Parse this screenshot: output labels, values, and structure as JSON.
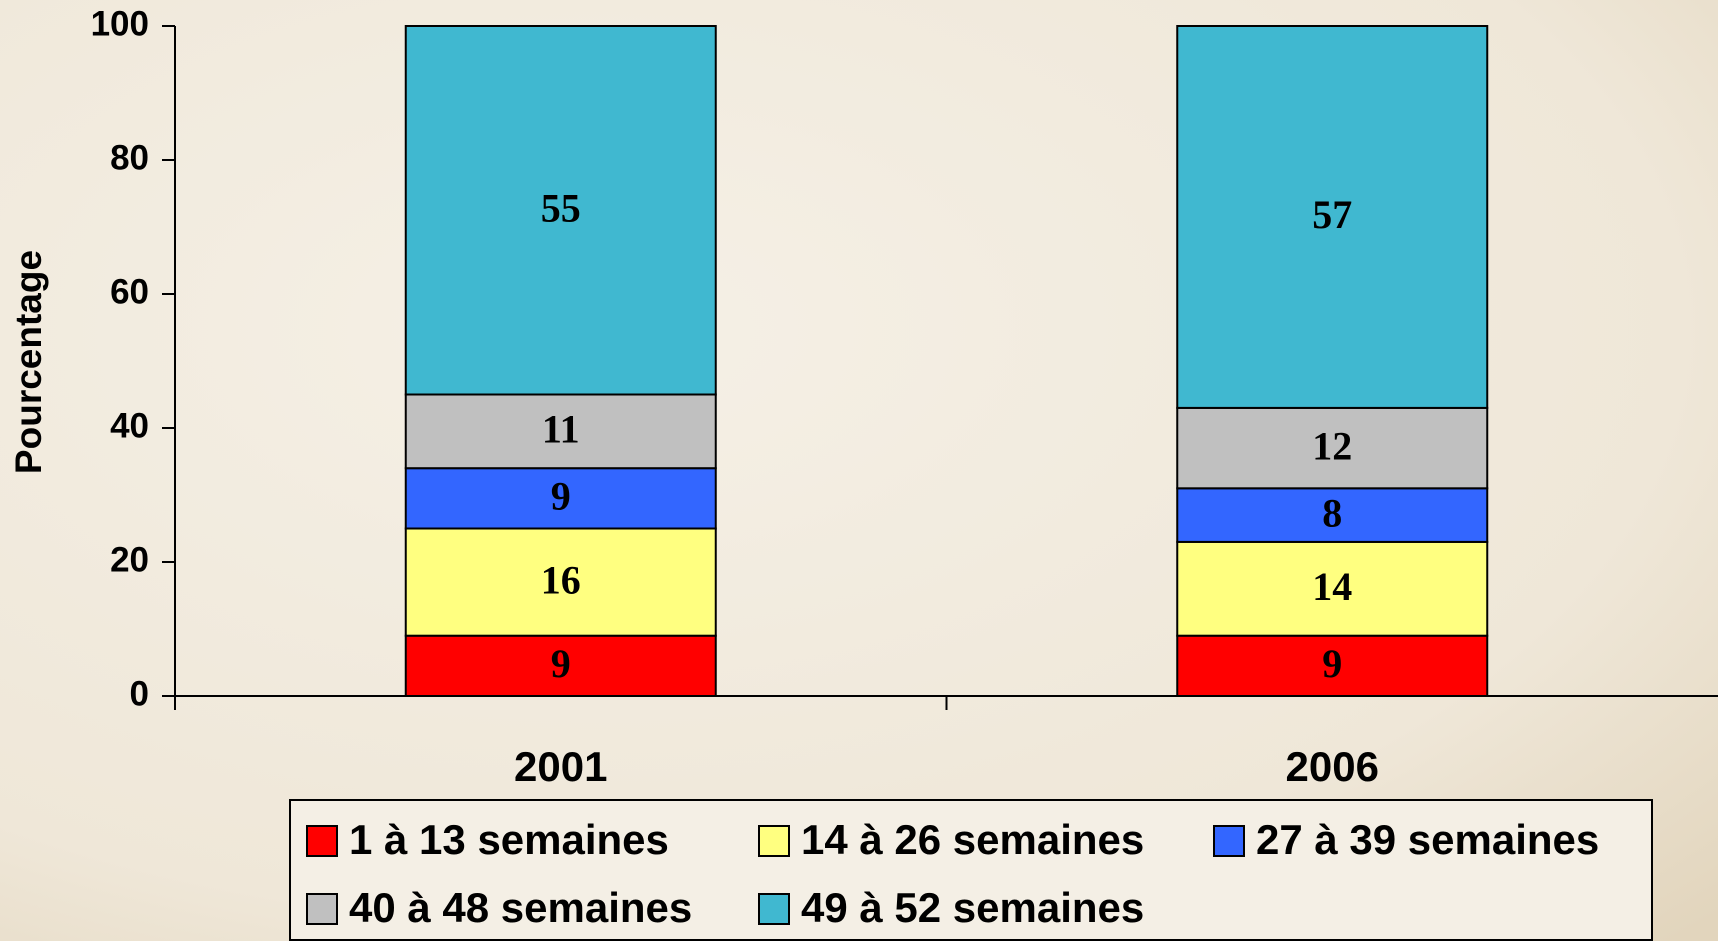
{
  "chart_data": {
    "type": "stacked_bar",
    "ylabel": "Pourcentage",
    "categories": [
      "2001",
      "2006"
    ],
    "series": [
      {
        "name": "1 à 13 semaines",
        "color": "#ff0000",
        "values": [
          9,
          9
        ]
      },
      {
        "name": "14 à 26 semaines",
        "color": "#ffff80",
        "values": [
          16,
          14
        ]
      },
      {
        "name": "27 à 39 semaines",
        "color": "#3366ff",
        "values": [
          9,
          8
        ]
      },
      {
        "name": "40 à 48 semaines",
        "color": "#c0c0c0",
        "values": [
          11,
          12
        ]
      },
      {
        "name": "49 à 52 semaines",
        "color": "#40b8d0",
        "values": [
          55,
          57
        ]
      }
    ],
    "ylim": [
      0,
      100
    ],
    "yticks": [
      0,
      20,
      40,
      60,
      80,
      100
    ],
    "legend": "bottom"
  }
}
